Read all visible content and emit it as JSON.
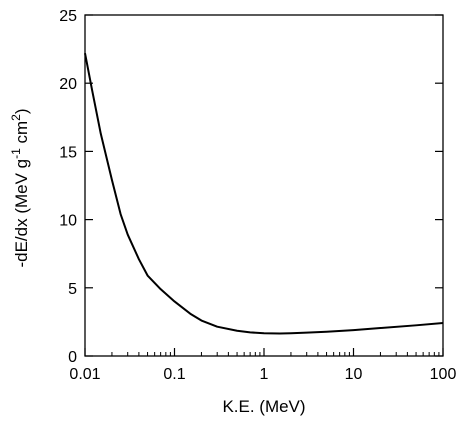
{
  "chart_data": {
    "type": "line",
    "xlabel": "K.E. (MeV)",
    "ylabel_parts": [
      "-dE/dx (MeV g",
      "-1",
      " cm",
      "2",
      ")"
    ],
    "x_scale": "log",
    "xlim": [
      0.01,
      100
    ],
    "ylim": [
      0,
      25
    ],
    "x_ticks": [
      0.01,
      0.1,
      1,
      10,
      100
    ],
    "x_tick_labels": [
      "0.01",
      "0.1",
      "1",
      "10",
      "100"
    ],
    "y_ticks": [
      0,
      5,
      10,
      15,
      20,
      25
    ],
    "y_tick_labels": [
      "0",
      "5",
      "10",
      "15",
      "20",
      "25"
    ],
    "grid": false,
    "line_color": "#000000",
    "series": [
      {
        "x": [
          0.01,
          0.012,
          0.015,
          0.02,
          0.025,
          0.03,
          0.04,
          0.05,
          0.07,
          0.1,
          0.15,
          0.2,
          0.3,
          0.5,
          0.7,
          1,
          1.5,
          2,
          3,
          5,
          10,
          20,
          50,
          100
        ],
        "y": [
          22.2,
          19.5,
          16.3,
          12.9,
          10.4,
          8.9,
          7.1,
          5.9,
          4.9,
          4.0,
          3.1,
          2.6,
          2.15,
          1.85,
          1.73,
          1.67,
          1.65,
          1.67,
          1.71,
          1.78,
          1.9,
          2.05,
          2.25,
          2.42
        ]
      }
    ]
  }
}
